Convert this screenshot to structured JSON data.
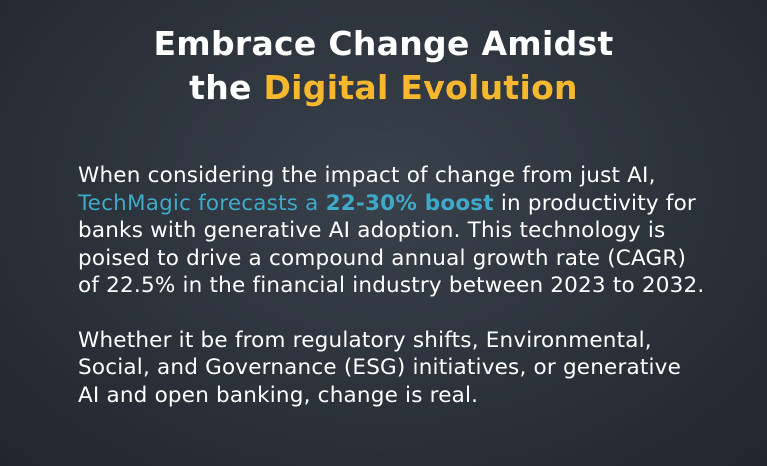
{
  "title": {
    "line1": "Embrace Change Amidst",
    "line2_plain": "the",
    "line2_highlight": "Digital Evolution"
  },
  "paragraphs": [
    {
      "intro": "When considering the impact of change from just AI,",
      "highlight": "TechMagic forecasts a",
      "highlight_bold": "22-30% boost",
      "rest": "in productivity for banks with generative AI adoption. This technology is poised to drive a compound annual growth rate (CAGR) of 22.5% in the financial industry between 2023 to 2032."
    },
    {
      "text": "Whether it be from regulatory shifts, Environmental, Social, and Governance (ESG) initiatives, or generative AI and open banking, change is real."
    }
  ]
}
